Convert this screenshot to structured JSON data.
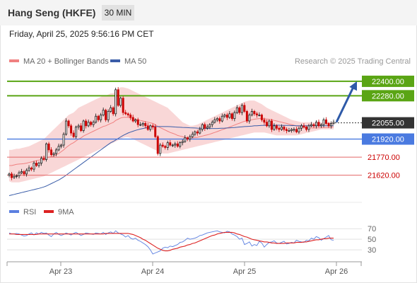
{
  "header": {
    "title": "Hang Seng (HKFE)",
    "timeframe": "30 MIN",
    "datetime": "Friday, April 25, 2025 9:56:16 PM CET"
  },
  "legend": {
    "ma20": "MA 20 + Bollinger Bands",
    "ma50": "MA 50",
    "credit": "Research © 2025 Trading Central",
    "rsi": "RSI",
    "rsi_ma": "9MA"
  },
  "colors": {
    "bullish": "#1a1a1a",
    "bearish": "#cc0000",
    "bollinger": "#f7c9c9",
    "ma20": "#f08080",
    "ma50": "#3a5da8",
    "resistance": "#5aa514",
    "pivot": "#4a7ae0",
    "support": "#e36666",
    "current_price": "#333333",
    "rsi_line": "#5b7fe0",
    "rsi_ma_line": "#dd2222"
  },
  "chart_data": [
    {
      "type": "candlestick",
      "x_ticks": [
        "Apr 23",
        "Apr 24",
        "Apr 25",
        "Apr 26"
      ],
      "ylim": [
        21400,
        22470
      ],
      "levels": [
        {
          "label": "22400.00",
          "value": 22400,
          "role": "resistance"
        },
        {
          "label": "22280.00",
          "value": 22280,
          "role": "resistance"
        },
        {
          "label": "22055.00",
          "value": 22055,
          "role": "current"
        },
        {
          "label": "21920.00",
          "value": 21920,
          "role": "pivot"
        },
        {
          "label": "21770.00",
          "value": 21770,
          "role": "support"
        },
        {
          "label": "21620.00",
          "value": 21620,
          "role": "support"
        }
      ],
      "close": [
        21630,
        21600,
        21610,
        21615,
        21640,
        21650,
        21630,
        21660,
        21680,
        21670,
        21720,
        21700,
        21720,
        21760,
        21750,
        21880,
        21830,
        21790,
        21800,
        21830,
        21860,
        21870,
        21960,
        22070,
        22030,
        21970,
        21940,
        22020,
        22030,
        21990,
        22070,
        22030,
        22060,
        22040,
        22060,
        22110,
        22080,
        22120,
        22160,
        22080,
        22150,
        22180,
        22130,
        22330,
        22200,
        22260,
        22140,
        22130,
        22120,
        22100,
        22070,
        22080,
        22040,
        22040,
        22050,
        22030,
        22000,
        22030,
        22020,
        21940,
        21800,
        21870,
        21860,
        21850,
        21890,
        21870,
        21870,
        21880,
        21860,
        21890,
        21900,
        21930,
        21920,
        21940,
        21960,
        21980,
        21970,
        22000,
        22040,
        22010,
        22020,
        22040,
        22060,
        22080,
        22090,
        22070,
        22110,
        22120,
        22100,
        22130,
        22090,
        22140,
        22180,
        22140,
        22200,
        22150,
        22070,
        22120,
        22150,
        22130,
        22120,
        22120,
        22080,
        22060,
        22030,
        22070,
        22000,
        22030,
        22010,
        22000,
        22020,
        22000,
        21990,
        21990,
        22000,
        22000,
        21980,
        22010,
        22030,
        22020,
        22000,
        22030,
        22040,
        22030,
        22060,
        22030,
        22040,
        22080,
        22050,
        22030,
        22050,
        22060
      ],
      "ma20": [
        21700,
        21700,
        21705,
        21710,
        21712,
        21714,
        21716,
        21720,
        21725,
        21730,
        21735,
        21740,
        21745,
        21750,
        21755,
        21765,
        21770,
        21775,
        21780,
        21790,
        21800,
        21815,
        21830,
        21850,
        21865,
        21880,
        21890,
        21905,
        21920,
        21930,
        21945,
        21955,
        21965,
        21975,
        21985,
        21995,
        22005,
        22015,
        22025,
        22030,
        22040,
        22050,
        22058,
        22075,
        22085,
        22095,
        22100,
        22102,
        22100,
        22095,
        22090,
        22085,
        22080,
        22075,
        22070,
        22065,
        22060,
        22055,
        22050,
        22040,
        22025,
        22015,
        22005,
        21995,
        21985,
        21975,
        21968,
        21960,
        21950,
        21945,
        21940,
        21935,
        21930,
        21930,
        21930,
        21932,
        21935,
        21940,
        21945,
        21950,
        21955,
        21960,
        21968,
        21975,
        21982,
        21990,
        21998,
        22005,
        22012,
        22020,
        22028,
        22036,
        22045,
        22052,
        22060,
        22068,
        22070,
        22075,
        22080,
        22085,
        22088,
        22090,
        22092,
        22090,
        22087,
        22085,
        22080,
        22075,
        22070,
        22065,
        22060,
        22055,
        22050,
        22045,
        22040,
        22035,
        22030,
        22025,
        22020,
        22017,
        22015,
        22013,
        22012,
        22012,
        22013,
        22013,
        22014,
        22015,
        22016,
        22017,
        22018,
        22020
      ],
      "ma50": [
        21450,
        21455,
        21460,
        21465,
        21470,
        21475,
        21480,
        21485,
        21490,
        21495,
        21500,
        21505,
        21510,
        21516,
        21522,
        21530,
        21540,
        21550,
        21560,
        21570,
        21580,
        21592,
        21605,
        21620,
        21635,
        21650,
        21665,
        21680,
        21695,
        21710,
        21725,
        21740,
        21755,
        21770,
        21785,
        21800,
        21815,
        21830,
        21845,
        21860,
        21875,
        21890,
        21900,
        21912,
        21925,
        21938,
        21950,
        21960,
        21970,
        21978,
        21985,
        21992,
        21998,
        22003,
        22008,
        22012,
        22016,
        22020,
        22023,
        22024,
        22024,
        22024,
        22024,
        22024,
        22024,
        22023,
        22022,
        22020,
        22019,
        22018,
        22017,
        22016,
        22015,
        22014,
        22013,
        22012,
        22011,
        22010,
        22009,
        22008,
        22008,
        22008,
        22008,
        22008,
        22008,
        22009,
        22010,
        22011,
        22012,
        22013,
        22015,
        22016,
        22018,
        22020,
        22022,
        22024,
        22025,
        22026,
        22028,
        22030,
        22031,
        22032,
        22033,
        22034,
        22035,
        22035,
        22035,
        22035,
        22035,
        22035,
        22034,
        22034,
        22033,
        22033,
        22032,
        22032,
        22031,
        22031,
        22030,
        22030,
        22030,
        22030,
        22030,
        22030,
        22030,
        22030,
        22030,
        22030,
        22030,
        22030,
        22030,
        22030
      ],
      "bollinger_upper": [
        21830,
        21830,
        21835,
        21840,
        21840,
        21845,
        21850,
        21855,
        21860,
        21870,
        21880,
        21890,
        21900,
        21910,
        21920,
        21940,
        21960,
        21980,
        22000,
        22020,
        22040,
        22060,
        22080,
        22100,
        22120,
        22130,
        22140,
        22160,
        22180,
        22190,
        22200,
        22210,
        22220,
        22230,
        22240,
        22250,
        22260,
        22270,
        22280,
        22280,
        22290,
        22300,
        22300,
        22320,
        22340,
        22350,
        22350,
        22345,
        22340,
        22330,
        22320,
        22310,
        22300,
        22290,
        22280,
        22270,
        22260,
        22250,
        22240,
        22230,
        22220,
        22210,
        22200,
        22190,
        22180,
        22160,
        22140,
        22120,
        22100,
        22080,
        22060,
        22050,
        22040,
        22030,
        22030,
        22035,
        22040,
        22050,
        22060,
        22070,
        22080,
        22090,
        22100,
        22110,
        22120,
        22130,
        22140,
        22150,
        22160,
        22170,
        22180,
        22190,
        22200,
        22210,
        22220,
        22230,
        22235,
        22240,
        22240,
        22240,
        22230,
        22220,
        22210,
        22195,
        22180,
        22170,
        22160,
        22150,
        22140,
        22130,
        22120,
        22110,
        22100,
        22090,
        22080,
        22075,
        22070,
        22065,
        22060,
        22060,
        22060,
        22060,
        22060,
        22060,
        22060,
        22060,
        22060,
        22060,
        22060,
        22060,
        22060,
        22060
      ],
      "bollinger_lower": [
        21570,
        21560,
        21560,
        21560,
        21560,
        21565,
        21570,
        21575,
        21580,
        21585,
        21590,
        21595,
        21600,
        21605,
        21610,
        21620,
        21630,
        21640,
        21650,
        21660,
        21670,
        21680,
        21690,
        21700,
        21710,
        21720,
        21730,
        21740,
        21750,
        21760,
        21770,
        21780,
        21790,
        21800,
        21810,
        21820,
        21830,
        21840,
        21850,
        21860,
        21870,
        21880,
        21890,
        21900,
        21910,
        21920,
        21930,
        21935,
        21935,
        21930,
        21920,
        21910,
        21900,
        21890,
        21880,
        21870,
        21860,
        21850,
        21840,
        21830,
        21820,
        21810,
        21800,
        21800,
        21800,
        21805,
        21810,
        21815,
        21820,
        21825,
        21830,
        21835,
        21840,
        21845,
        21850,
        21855,
        21860,
        21865,
        21870,
        21875,
        21880,
        21885,
        21890,
        21895,
        21900,
        21905,
        21910,
        21915,
        21920,
        21925,
        21930,
        21935,
        21940,
        21945,
        21950,
        21955,
        21960,
        21965,
        21970,
        21975,
        21975,
        21975,
        21975,
        21975,
        21970,
        21965,
        21960,
        21955,
        21950,
        21950,
        21950,
        21950,
        21950,
        21950,
        21950,
        21950,
        21950,
        21955,
        21960,
        21965,
        21970,
        21975,
        21980,
        21985,
        21990,
        21995,
        22000,
        22000,
        22000,
        22000,
        22000,
        22000
      ],
      "forecast_target": 22400
    },
    {
      "type": "line",
      "name": "RSI",
      "y_ticks": [
        70,
        50,
        30
      ],
      "ylim": [
        10,
        85
      ],
      "series": [
        {
          "name": "RSI",
          "values": [
            62,
            60,
            60,
            61,
            60,
            58,
            56,
            57,
            60,
            62,
            58,
            62,
            60,
            63,
            61,
            62,
            58,
            55,
            60,
            63,
            59,
            57,
            59,
            62,
            60,
            58,
            61,
            63,
            60,
            57,
            59,
            62,
            61,
            60,
            59,
            62,
            61,
            60,
            63,
            59,
            62,
            64,
            61,
            66,
            62,
            60,
            58,
            54,
            57,
            52,
            50,
            52,
            48,
            46,
            43,
            40,
            36,
            30,
            22,
            24,
            26,
            28,
            33,
            35,
            34,
            37,
            36,
            38,
            40,
            44,
            45,
            48,
            52,
            50,
            51,
            52,
            54,
            57,
            58,
            60,
            62,
            63,
            64,
            65,
            66,
            64,
            63,
            62,
            65,
            64,
            60,
            58,
            55,
            50,
            52,
            40,
            42,
            45,
            37,
            40,
            38,
            46,
            43,
            35,
            40,
            44,
            45,
            47,
            43,
            42,
            44,
            46,
            41,
            42,
            44,
            43,
            48,
            46,
            45,
            44,
            48,
            47,
            52,
            50,
            55,
            53,
            48,
            51,
            54,
            57,
            49,
            48
          ]
        },
        {
          "name": "9MA",
          "values": [
            60,
            60,
            60,
            59,
            59,
            59,
            59,
            59,
            59,
            59,
            59,
            59,
            60,
            60,
            60,
            60,
            60,
            60,
            60,
            60,
            60,
            60,
            60,
            60,
            60,
            60,
            60,
            60,
            60,
            60,
            60,
            60,
            60,
            60,
            60,
            60,
            60,
            60,
            60,
            61,
            61,
            61,
            61,
            61,
            61,
            61,
            61,
            61,
            61,
            60,
            59,
            57,
            55,
            53,
            50,
            48,
            45,
            42,
            39,
            36,
            33,
            31,
            29,
            28,
            28,
            29,
            31,
            32,
            33,
            35,
            36,
            37,
            39,
            40,
            42,
            43,
            45,
            47,
            49,
            51,
            53,
            55,
            57,
            58,
            60,
            61,
            62,
            63,
            63,
            63,
            63,
            62,
            60,
            59,
            57,
            55,
            54,
            52,
            50,
            49,
            48,
            47,
            46,
            45,
            45,
            44,
            43,
            43,
            42,
            42,
            42,
            42,
            43,
            43,
            43,
            43,
            44,
            44,
            44,
            45,
            45,
            46,
            47,
            48,
            49,
            49,
            50,
            51,
            51,
            52,
            52,
            52
          ]
        }
      ]
    }
  ]
}
